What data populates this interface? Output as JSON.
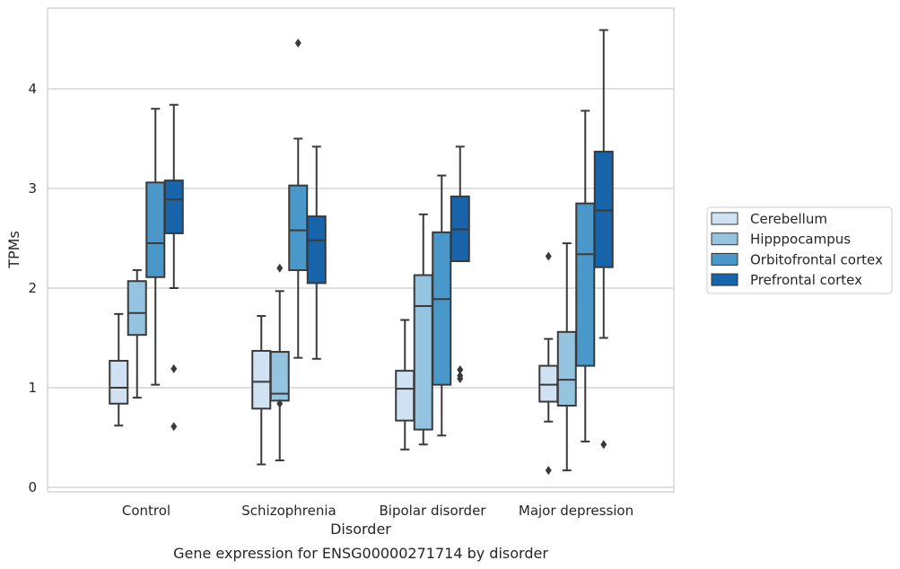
{
  "chart_data": {
    "type": "box",
    "title": "Gene expression for ENSG00000271714 by disorder",
    "xlabel": "Disorder",
    "ylabel": "TPMs",
    "categories": [
      "Control",
      "Schizophrenia",
      "Bipolar disorder",
      "Major depression"
    ],
    "ylim": [
      -0.05,
      4.8
    ],
    "yticks": [
      0,
      1,
      2,
      3,
      4
    ],
    "grid": "horizontal",
    "legend_position": "right",
    "series": [
      {
        "name": "Cerebellum",
        "color": "#d0e1f2",
        "boxes": [
          {
            "whisker_low": 0.62,
            "q1": 0.84,
            "median": 1.0,
            "q3": 1.27,
            "whisker_high": 1.74,
            "outliers": []
          },
          {
            "whisker_low": 0.23,
            "q1": 0.79,
            "median": 1.06,
            "q3": 1.37,
            "whisker_high": 1.72,
            "outliers": []
          },
          {
            "whisker_low": 0.38,
            "q1": 0.67,
            "median": 0.99,
            "q3": 1.17,
            "whisker_high": 1.68,
            "outliers": []
          },
          {
            "whisker_low": 0.66,
            "q1": 0.86,
            "median": 1.03,
            "q3": 1.22,
            "whisker_high": 1.49,
            "outliers": [
              0.17,
              2.32
            ]
          }
        ]
      },
      {
        "name": "Hipppocampus",
        "color": "#94c4df",
        "boxes": [
          {
            "whisker_low": 0.9,
            "q1": 1.53,
            "median": 1.75,
            "q3": 2.07,
            "whisker_high": 2.18,
            "outliers": []
          },
          {
            "whisker_low": 0.27,
            "q1": 0.87,
            "median": 0.94,
            "q3": 1.36,
            "whisker_high": 1.97,
            "outliers": [
              0.84,
              2.2
            ]
          },
          {
            "whisker_low": 0.43,
            "q1": 0.58,
            "median": 1.82,
            "q3": 2.13,
            "whisker_high": 2.74,
            "outliers": []
          },
          {
            "whisker_low": 0.17,
            "q1": 0.82,
            "median": 1.08,
            "q3": 1.56,
            "whisker_high": 2.45,
            "outliers": []
          }
        ]
      },
      {
        "name": "Orbitofrontal cortex",
        "color": "#4a98c9",
        "boxes": [
          {
            "whisker_low": 1.03,
            "q1": 2.11,
            "median": 2.45,
            "q3": 3.06,
            "whisker_high": 3.8,
            "outliers": []
          },
          {
            "whisker_low": 1.3,
            "q1": 2.18,
            "median": 2.58,
            "q3": 3.03,
            "whisker_high": 3.5,
            "outliers": [
              4.46
            ]
          },
          {
            "whisker_low": 0.52,
            "q1": 1.03,
            "median": 1.89,
            "q3": 2.56,
            "whisker_high": 3.13,
            "outliers": []
          },
          {
            "whisker_low": 0.46,
            "q1": 1.22,
            "median": 2.34,
            "q3": 2.85,
            "whisker_high": 3.78,
            "outliers": []
          }
        ]
      },
      {
        "name": "Prefrontal cortex",
        "color": "#1764ab",
        "boxes": [
          {
            "whisker_low": 2.0,
            "q1": 2.55,
            "median": 2.89,
            "q3": 3.08,
            "whisker_high": 3.84,
            "outliers": [
              1.19,
              0.61
            ]
          },
          {
            "whisker_low": 1.29,
            "q1": 2.05,
            "median": 2.48,
            "q3": 2.72,
            "whisker_high": 3.42,
            "outliers": []
          },
          {
            "whisker_low": 2.27,
            "q1": 2.27,
            "median": 2.59,
            "q3": 2.92,
            "whisker_high": 3.42,
            "outliers": [
              1.09,
              1.12,
              1.18
            ]
          },
          {
            "whisker_low": 1.5,
            "q1": 2.21,
            "median": 2.78,
            "q3": 3.37,
            "whisker_high": 4.59,
            "outliers": [
              0.43
            ]
          }
        ]
      }
    ]
  }
}
